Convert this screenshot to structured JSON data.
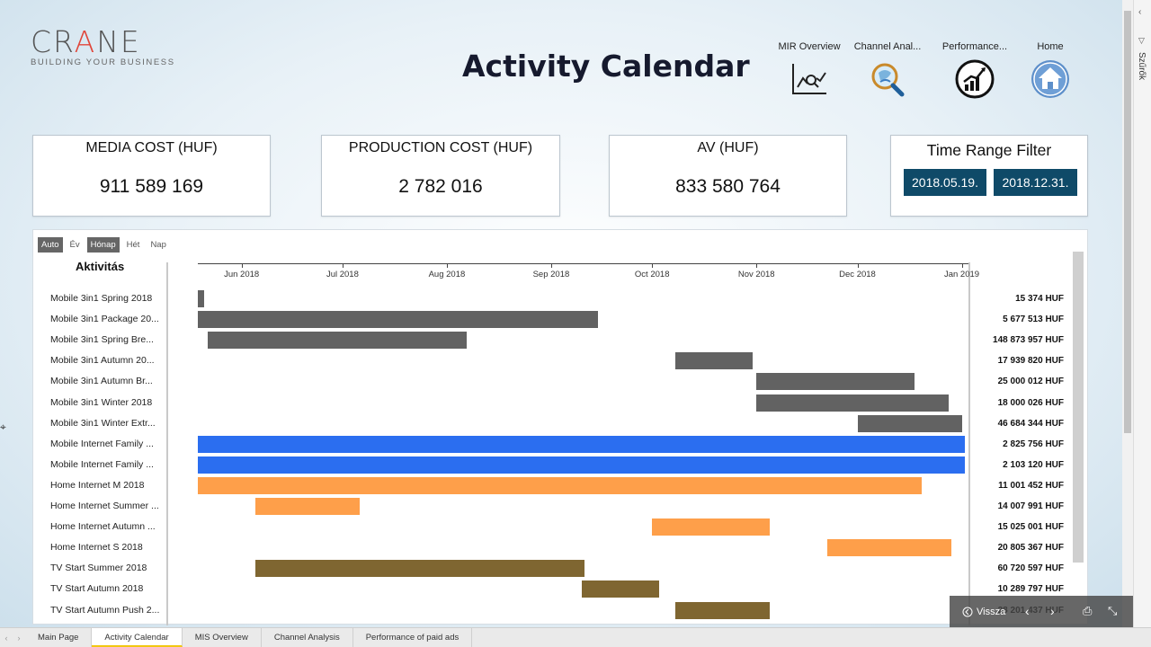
{
  "logo": {
    "pre": "CR",
    "accent": "A",
    "post": "NE",
    "tagline": "BUILDING YOUR BUSINESS"
  },
  "title": "Activity Calendar",
  "nav": [
    {
      "label": "MIR Overview",
      "icon": "chart-magnifier-icon"
    },
    {
      "label": "Channel Anal...",
      "icon": "magnifier-globe-icon"
    },
    {
      "label": "Performance...",
      "icon": "growth-chart-circle-icon"
    },
    {
      "label": "Home",
      "icon": "home-icon"
    }
  ],
  "cards": {
    "media": {
      "title": "MEDIA COST (HUF)",
      "value": "911 589 169"
    },
    "production": {
      "title": "PRODUCTION COST (HUF)",
      "value": "2 782 016"
    },
    "av": {
      "title": "AV (HUF)",
      "value": "833 580 764"
    }
  },
  "time_filter": {
    "title": "Time Range Filter",
    "start": "2018.05.19.",
    "end": "2018.12.31."
  },
  "granularity": {
    "options": [
      "Auto",
      "Év",
      "Hónap",
      "Hét",
      "Nap"
    ],
    "active": [
      "Auto",
      "Hónap"
    ]
  },
  "gantt": {
    "header": "Aktivitás",
    "months": [
      "Jun 2018",
      "Jul 2018",
      "Aug 2018",
      "Sep 2018",
      "Oct 2018",
      "Nov 2018",
      "Dec 2018",
      "Jan 2019"
    ],
    "colors": {
      "gray": "#626262",
      "blue": "#2b6ef0",
      "orange": "#fe9f4a",
      "olive": "#7f6631"
    },
    "rows": [
      {
        "label": "Mobile 3in1 Spring 2018",
        "value": "15 374 HUF",
        "start": "2018-05-19",
        "end": "2018-05-21",
        "color": "gray"
      },
      {
        "label": "Mobile 3in1 Package 20...",
        "value": "5 677 513 HUF",
        "start": "2018-05-19",
        "end": "2018-09-15",
        "color": "gray"
      },
      {
        "label": "Mobile 3in1 Spring Bre...",
        "value": "148 873 957 HUF",
        "start": "2018-05-22",
        "end": "2018-08-07",
        "color": "gray"
      },
      {
        "label": "Mobile 3in1 Autumn 20...",
        "value": "17 939 820 HUF",
        "start": "2018-10-08",
        "end": "2018-10-31",
        "color": "gray"
      },
      {
        "label": "Mobile 3in1 Autumn Br...",
        "value": "25 000 012 HUF",
        "start": "2018-11-01",
        "end": "2018-12-18",
        "color": "gray"
      },
      {
        "label": "Mobile 3in1 Winter 2018",
        "value": "18 000 026 HUF",
        "start": "2018-11-01",
        "end": "2018-12-28",
        "color": "gray"
      },
      {
        "label": "Mobile 3in1 Winter Extr...",
        "value": "46 684 344 HUF",
        "start": "2018-12-01",
        "end": "2019-01-01",
        "color": "gray"
      },
      {
        "label": "Mobile Internet Family ...",
        "value": "2 825 756 HUF",
        "start": "2018-05-19",
        "end": "2019-01-02",
        "color": "blue"
      },
      {
        "label": "Mobile Internet Family ...",
        "value": "2 103 120 HUF",
        "start": "2018-05-19",
        "end": "2019-01-02",
        "color": "blue"
      },
      {
        "label": "Home Internet M 2018",
        "value": "11 001 452 HUF",
        "start": "2018-05-19",
        "end": "2018-12-20",
        "color": "orange"
      },
      {
        "label": "Home Internet Summer ...",
        "value": "14 007 991 HUF",
        "start": "2018-06-05",
        "end": "2018-07-06",
        "color": "orange"
      },
      {
        "label": "Home Internet Autumn ...",
        "value": "15 025 001 HUF",
        "start": "2018-10-01",
        "end": "2018-11-05",
        "color": "orange"
      },
      {
        "label": "Home Internet S 2018",
        "value": "20 805 367 HUF",
        "start": "2018-11-22",
        "end": "2018-12-29",
        "color": "orange"
      },
      {
        "label": "TV Start Summer 2018",
        "value": "60 720 597 HUF",
        "start": "2018-06-05",
        "end": "2018-09-11",
        "color": "olive"
      },
      {
        "label": "TV Start Autumn 2018",
        "value": "10 289 797 HUF",
        "start": "2018-09-10",
        "end": "2018-10-03",
        "color": "olive"
      },
      {
        "label": "TV Start Autumn Push 2...",
        "value": "28 201 437 HUF",
        "start": "2018-10-08",
        "end": "2018-11-05",
        "color": "olive"
      }
    ]
  },
  "filter_pane": {
    "label": "Szűrők"
  },
  "tabs": [
    "Main Page",
    "Activity Calendar",
    "MIS Overview",
    "Channel Analysis",
    "Performance of paid ads"
  ],
  "active_tab": "Activity Calendar",
  "overlay": {
    "back_label": "Vissza"
  }
}
